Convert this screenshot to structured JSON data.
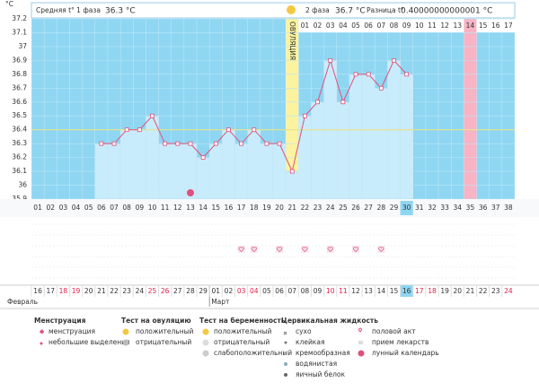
{
  "header": {
    "phase1_label": "Средняя t° 1 фаза",
    "phase1_value": "36.3 °C",
    "phase2_label": "2 фаза",
    "phase2_value": "36.7 °C",
    "diff_label": "Разница t°",
    "diff_value": "0.40000000000001 °C"
  },
  "chart_data": {
    "type": "line",
    "y_unit": "°C",
    "categories": [
      "01",
      "02",
      "03",
      "04",
      "05",
      "06",
      "07",
      "08",
      "09",
      "10",
      "11",
      "12",
      "13",
      "14",
      "15",
      "16",
      "17",
      "18",
      "19",
      "20",
      "21",
      "22",
      "23",
      "24",
      "25",
      "26",
      "27",
      "28",
      "29",
      "30",
      "31",
      "32",
      "33",
      "34",
      "35",
      "36",
      "37",
      "38"
    ],
    "values": [
      null,
      null,
      null,
      null,
      null,
      36.3,
      36.3,
      36.4,
      36.4,
      36.5,
      36.3,
      36.3,
      36.3,
      36.2,
      36.3,
      36.4,
      36.3,
      36.4,
      36.3,
      36.3,
      36.1,
      36.5,
      36.6,
      36.9,
      36.6,
      36.8,
      36.8,
      36.7,
      36.9,
      36.8,
      null,
      null,
      null,
      null,
      null,
      null,
      null,
      null
    ],
    "ylim": [
      35.9,
      37.2
    ],
    "yticks": [
      35.9,
      36,
      36.1,
      36.2,
      36.3,
      36.4,
      36.5,
      36.6,
      36.7,
      36.8,
      36.9,
      37,
      37.1,
      37.2
    ],
    "cover_line": 36.4,
    "ovulation_day": 21,
    "ovulation_label": "ОВУЛЯЦИЯ",
    "highlight_day": 30,
    "post_ovulation_days": [
      "01",
      "02",
      "03",
      "04",
      "05",
      "06",
      "07",
      "08",
      "09",
      "10",
      "11",
      "12",
      "13",
      "14",
      "15",
      "16",
      "17"
    ],
    "post_ovulation_highlight": 14,
    "intercourse_days": [
      17,
      18,
      20,
      22,
      24,
      26,
      28
    ],
    "lunar_days": [
      13
    ],
    "line_color": "#e0507a",
    "bar_color": "#c8ecfb",
    "background_color": "#8fd6f2"
  },
  "calendar": {
    "dates": [
      {
        "label": "16",
        "weekend": false
      },
      {
        "label": "17",
        "weekend": false
      },
      {
        "label": "18",
        "weekend": true
      },
      {
        "label": "19",
        "weekend": true
      },
      {
        "label": "20",
        "weekend": false
      },
      {
        "label": "21",
        "weekend": false
      },
      {
        "label": "22",
        "weekend": false
      },
      {
        "label": "23",
        "weekend": false
      },
      {
        "label": "24",
        "weekend": false
      },
      {
        "label": "25",
        "weekend": true
      },
      {
        "label": "26",
        "weekend": true
      },
      {
        "label": "27",
        "weekend": false
      },
      {
        "label": "28",
        "weekend": false
      },
      {
        "label": "29",
        "weekend": false
      },
      {
        "label": "01",
        "weekend": false
      },
      {
        "label": "02",
        "weekend": false
      },
      {
        "label": "03",
        "weekend": true
      },
      {
        "label": "04",
        "weekend": true
      },
      {
        "label": "05",
        "weekend": false
      },
      {
        "label": "06",
        "weekend": false
      },
      {
        "label": "07",
        "weekend": false
      },
      {
        "label": "08",
        "weekend": false
      },
      {
        "label": "09",
        "weekend": false
      },
      {
        "label": "10",
        "weekend": true
      },
      {
        "label": "11",
        "weekend": true
      },
      {
        "label": "12",
        "weekend": false
      },
      {
        "label": "13",
        "weekend": false
      },
      {
        "label": "14",
        "weekend": false
      },
      {
        "label": "15",
        "weekend": false
      },
      {
        "label": "16",
        "weekend": false
      },
      {
        "label": "17",
        "weekend": true
      },
      {
        "label": "18",
        "weekend": true
      },
      {
        "label": "19",
        "weekend": false
      },
      {
        "label": "20",
        "weekend": false
      },
      {
        "label": "21",
        "weekend": false
      },
      {
        "label": "22",
        "weekend": false
      },
      {
        "label": "23",
        "weekend": false
      },
      {
        "label": "24",
        "weekend": true
      }
    ],
    "months": [
      "Февраль",
      "Март"
    ]
  },
  "legend": [
    {
      "title": "Менструация",
      "items": [
        "менструация",
        "небольшие выделения"
      ]
    },
    {
      "title": "Тест на овуляцию",
      "items": [
        "положительный",
        "отрицательный"
      ]
    },
    {
      "title": "Тест на беременность",
      "items": [
        "положительный",
        "отрицательный",
        "слабоположительный"
      ]
    },
    {
      "title": "Цервикальная жидкость",
      "items": [
        "сухо",
        "клейкая",
        "кремообразная",
        "водянистая",
        "яичный белок"
      ]
    },
    {
      "title": null,
      "items": [
        "половой акт",
        "прием лекарств",
        "лунный календарь"
      ]
    }
  ]
}
